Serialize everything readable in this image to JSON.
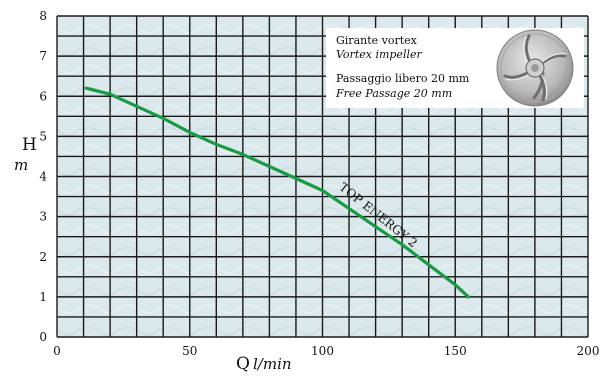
{
  "chart_data": {
    "type": "line",
    "title": "",
    "xlabel": "Q",
    "xunit": "l/min",
    "ylabel": "H",
    "yunit": "m",
    "xlim": [
      0,
      200
    ],
    "ylim": [
      0,
      8
    ],
    "xticks": [
      0,
      50,
      100,
      150,
      200
    ],
    "yticks": [
      0,
      1,
      2,
      3,
      4,
      5,
      6,
      7,
      8
    ],
    "grid": true,
    "series": [
      {
        "name": "TOP ENERGY 2",
        "color": "#1a9a45",
        "x": [
          11,
          20,
          30,
          40,
          50,
          60,
          70,
          80,
          90,
          100,
          110,
          120,
          130,
          140,
          150,
          155
        ],
        "y": [
          6.2,
          6.05,
          5.75,
          5.45,
          5.1,
          4.8,
          4.55,
          4.25,
          3.95,
          3.65,
          3.2,
          2.75,
          2.3,
          1.8,
          1.3,
          1.0
        ]
      }
    ],
    "inset": {
      "lines": [
        {
          "text": "Girante vortex",
          "italic": false
        },
        {
          "text": "Vortex impeller",
          "italic": true
        },
        {
          "text": "Passaggio libero 20 mm",
          "italic": false
        },
        {
          "text": "Free Passage 20 mm",
          "italic": true
        }
      ],
      "image_icon": "vortex-impeller-icon"
    },
    "colors": {
      "background": "#dce9ec",
      "grid": "#1a1a1a",
      "curve": "#1a9a45"
    }
  }
}
